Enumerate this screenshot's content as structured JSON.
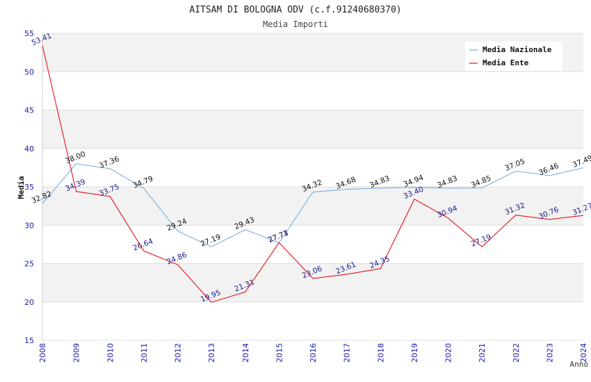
{
  "chart_data": {
    "type": "line",
    "title": "AITSAM DI BOLOGNA ODV (c.f.91240680370)",
    "subtitle": "Media Importi",
    "xlabel": "Anno",
    "ylabel": "Media",
    "ylim": [
      15,
      55
    ],
    "yticks": [
      15,
      20,
      25,
      30,
      35,
      40,
      45,
      50,
      55
    ],
    "grid": "horizontal bands",
    "legend_position": "top-right",
    "categories": [
      "2008",
      "2009",
      "2010",
      "2011",
      "2012",
      "2013",
      "2014",
      "2015",
      "2016",
      "2017",
      "2018",
      "2019",
      "2020",
      "2021",
      "2022",
      "2023",
      "2024"
    ],
    "series": [
      {
        "name": "Media Nazionale",
        "color": "#6fa8dc",
        "values": [
          32.82,
          38.0,
          37.36,
          34.79,
          29.24,
          27.19,
          29.43,
          27.71,
          34.32,
          34.68,
          34.83,
          34.94,
          34.83,
          34.85,
          37.05,
          36.46,
          37.49
        ],
        "labels": [
          "32.82",
          "38.00",
          "37.36",
          "34.79",
          "29.24",
          "27.19",
          "29.43",
          "27.71",
          "34.32",
          "34.68",
          "34.83",
          "34.94",
          "34.83",
          "34.85",
          "37.05",
          "36.46",
          "37.49"
        ]
      },
      {
        "name": "Media Ente",
        "color": "#e8101a",
        "values": [
          53.41,
          34.39,
          33.75,
          26.64,
          24.86,
          19.95,
          21.31,
          27.73,
          23.06,
          23.61,
          24.35,
          33.4,
          30.94,
          27.19,
          31.32,
          30.76,
          31.27
        ],
        "labels": [
          "53.41",
          "34.39",
          "33.75",
          "26.64",
          "24.86",
          "19.95",
          "21.31",
          "27.73",
          "23.06",
          "23.61",
          "24.35",
          "33.40",
          "30.94",
          "27.19",
          "31.32",
          "30.76",
          "31.27"
        ]
      }
    ]
  }
}
